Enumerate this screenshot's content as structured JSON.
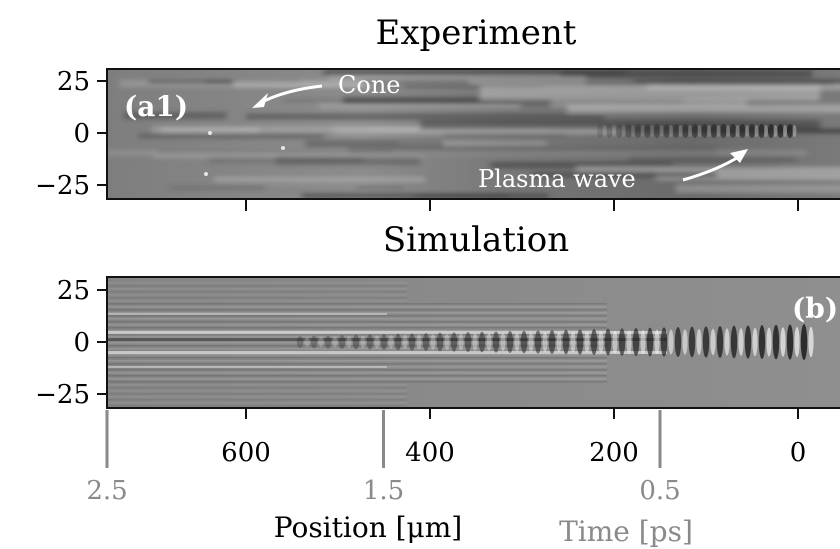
{
  "chart_data": [
    {
      "type": "heatmap",
      "title": "Experiment",
      "panel_label": "(a1)",
      "annotations": [
        "Cone",
        "Plasma wave"
      ],
      "y_ticks": [
        "25",
        "0",
        "−25"
      ],
      "y_values": [
        25,
        0,
        -25
      ],
      "x_values": [
        600,
        400,
        200,
        0
      ],
      "colormap": "grayscale"
    },
    {
      "type": "heatmap",
      "title": "Simulation",
      "panel_label": "(b)",
      "y_ticks": [
        "25",
        "0",
        "−25"
      ],
      "y_values": [
        25,
        0,
        -25
      ],
      "x_ticks": [
        "600",
        "400",
        "200",
        "0"
      ],
      "x_values": [
        600,
        400,
        200,
        0
      ],
      "xlabel": "Position [μm]",
      "time_axis": {
        "ticks": [
          "2.5",
          "1.5",
          "0.5"
        ],
        "values": [
          2.5,
          1.5,
          0.5
        ],
        "label": "Time [ps]"
      },
      "colormap": "grayscale"
    }
  ]
}
